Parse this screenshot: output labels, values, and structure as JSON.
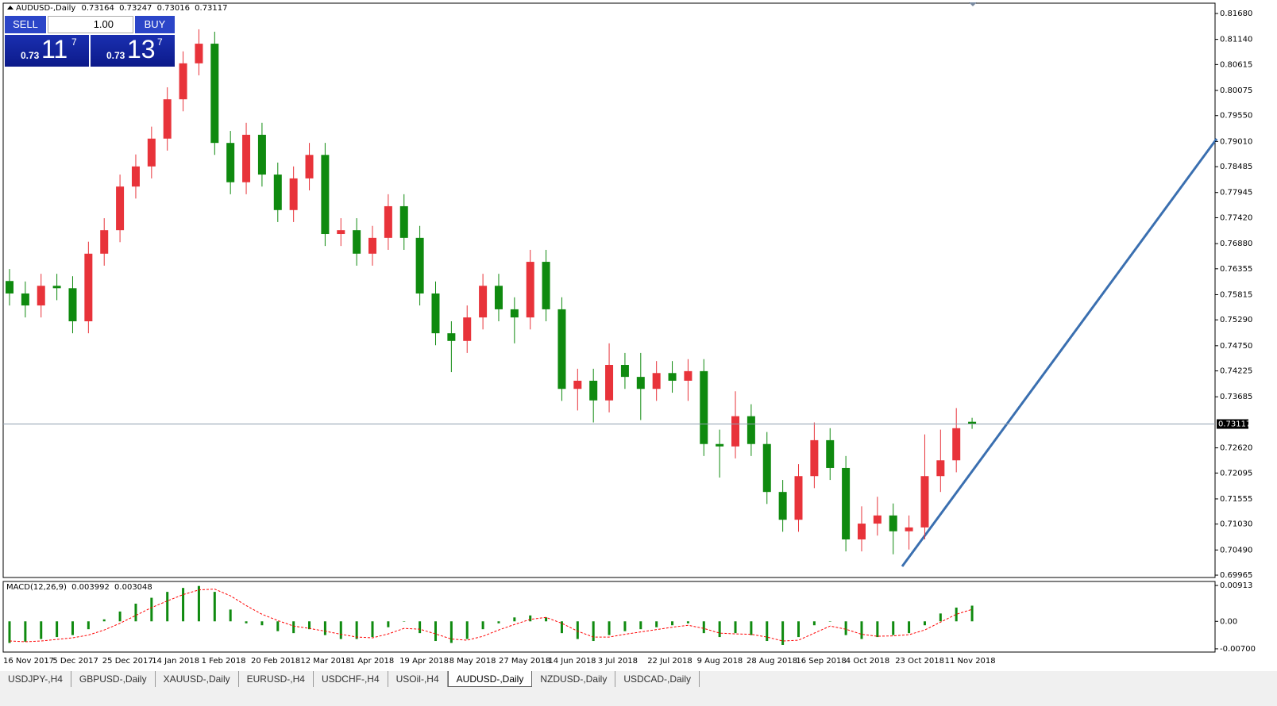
{
  "chart_data": [
    {
      "type": "candlestick",
      "title": "AUDUSD-,Daily",
      "open": [
        0.761,
        0.7584,
        0.7559,
        0.76,
        0.7595,
        0.7526,
        0.7667,
        0.7716,
        0.7807,
        0.7849,
        0.7907,
        0.7989,
        0.8064,
        0.8105,
        0.7898,
        0.7816,
        0.7915,
        0.7832,
        0.7758,
        0.7824,
        0.7873,
        0.7708,
        0.7716,
        0.7667,
        0.77,
        0.7766,
        0.77,
        0.7584,
        0.7501,
        0.7485,
        0.7534,
        0.76,
        0.7551,
        0.7534,
        0.765,
        0.7551,
        0.7385,
        0.7402,
        0.7361,
        0.7435,
        0.741,
        0.7385,
        0.7418,
        0.7402,
        0.7422,
        0.727,
        0.7265,
        0.7328,
        0.727,
        0.717,
        0.7112,
        0.7203,
        0.7278,
        0.722,
        0.7071,
        0.7104,
        0.7121,
        0.7088,
        0.7096,
        0.7203,
        0.7236,
        0.73164
      ],
      "high": [
        0.7635,
        0.7609,
        0.7625,
        0.7625,
        0.762,
        0.7692,
        0.7741,
        0.7832,
        0.7874,
        0.7932,
        0.8014,
        0.8089,
        0.8135,
        0.813,
        0.7923,
        0.794,
        0.794,
        0.7857,
        0.7849,
        0.7898,
        0.7898,
        0.7741,
        0.7741,
        0.7725,
        0.7791,
        0.7791,
        0.7725,
        0.7609,
        0.7526,
        0.7559,
        0.7625,
        0.7625,
        0.7576,
        0.7675,
        0.7675,
        0.7576,
        0.7427,
        0.7427,
        0.748,
        0.746,
        0.746,
        0.7443,
        0.7443,
        0.7447,
        0.7447,
        0.73,
        0.738,
        0.7353,
        0.7295,
        0.7195,
        0.7228,
        0.7315,
        0.7303,
        0.7245,
        0.714,
        0.716,
        0.7146,
        0.7121,
        0.729,
        0.73,
        0.7345,
        0.73247
      ],
      "low": [
        0.7559,
        0.7534,
        0.7534,
        0.757,
        0.7501,
        0.7501,
        0.7642,
        0.7691,
        0.7782,
        0.7824,
        0.7882,
        0.7964,
        0.8039,
        0.7873,
        0.7791,
        0.7791,
        0.7807,
        0.7733,
        0.7733,
        0.7799,
        0.7683,
        0.7683,
        0.7642,
        0.7642,
        0.7675,
        0.7675,
        0.7559,
        0.7476,
        0.742,
        0.746,
        0.7509,
        0.7526,
        0.748,
        0.7509,
        0.7526,
        0.736,
        0.734,
        0.7315,
        0.7336,
        0.7385,
        0.732,
        0.736,
        0.7377,
        0.736,
        0.7245,
        0.72,
        0.724,
        0.7245,
        0.7145,
        0.7087,
        0.7087,
        0.7178,
        0.7195,
        0.7046,
        0.7046,
        0.7079,
        0.704,
        0.705,
        0.7071,
        0.717,
        0.7211,
        0.73016
      ],
      "close": [
        0.7584,
        0.7559,
        0.76,
        0.7595,
        0.7526,
        0.7667,
        0.7716,
        0.7807,
        0.7849,
        0.7907,
        0.7989,
        0.8064,
        0.8105,
        0.7898,
        0.7816,
        0.7915,
        0.7832,
        0.7758,
        0.7824,
        0.7873,
        0.7708,
        0.7716,
        0.7667,
        0.77,
        0.7766,
        0.77,
        0.7584,
        0.7501,
        0.7485,
        0.7534,
        0.76,
        0.7551,
        0.7534,
        0.765,
        0.7551,
        0.7385,
        0.7402,
        0.7361,
        0.7435,
        0.741,
        0.7385,
        0.7418,
        0.7402,
        0.7422,
        0.727,
        0.7265,
        0.7328,
        0.727,
        0.717,
        0.7112,
        0.7203,
        0.7278,
        0.722,
        0.7071,
        0.7104,
        0.7121,
        0.7088,
        0.7096,
        0.7203,
        0.7236,
        0.7303,
        0.73117
      ],
      "up_color": "#e8333a",
      "down_color": "#0f8a0f",
      "ylim": [
        0.69916,
        0.81895
      ],
      "yticks": [
        {
          "value": 0.8168,
          "label": "0.81680"
        },
        {
          "value": 0.8114,
          "label": "0.81140"
        },
        0.80615,
        0.80075,
        {
          "value": 0.7955,
          "label": "0.79550"
        },
        {
          "value": 0.7901,
          "label": "0.79010"
        },
        0.78485,
        0.77945,
        {
          "value": 0.7742,
          "label": "0.77420"
        },
        {
          "value": 0.7688,
          "label": "0.76880"
        },
        0.76355,
        0.75815,
        {
          "value": 0.7529,
          "label": "0.75290"
        },
        {
          "value": 0.7475,
          "label": "0.74750"
        },
        0.74225,
        0.73685,
        {
          "value": 0.7262,
          "label": "0.72620"
        },
        0.72095,
        0.71555,
        {
          "value": 0.7103,
          "label": "0.71030"
        },
        {
          "value": 0.7049,
          "label": "0.70490"
        },
        0.69965
      ],
      "x_axis_labels": [
        "16 Nov 2017",
        "5 Dec 2017",
        "25 Dec 2017",
        "14 Jan 2018",
        "1 Feb 2018",
        "20 Feb 2018",
        "12 Mar 2018",
        "1 Apr 2018",
        "19 Apr 2018",
        "8 May 2018",
        "27 May 2018",
        "14 Jun 2018",
        "3 Jul 2018",
        "22 Jul 2018",
        "9 Aug 2018",
        "28 Aug 2018",
        "16 Sep 2018",
        "4 Oct 2018",
        "23 Oct 2018",
        "11 Nov 2018"
      ]
    },
    {
      "type": "macd",
      "title": "MACD(12,26,9)",
      "histogram": [
        -0.0055,
        -0.0052,
        -0.0045,
        -0.004,
        -0.0035,
        -0.002,
        0.0005,
        0.0025,
        0.0045,
        0.006,
        0.0075,
        0.0085,
        0.009,
        0.0075,
        0.003,
        -0.0005,
        -0.001,
        -0.0025,
        -0.003,
        -0.002,
        -0.0035,
        -0.0045,
        -0.0045,
        -0.004,
        -0.0015,
        0.0,
        -0.003,
        -0.005,
        -0.0055,
        -0.0045,
        -0.002,
        -0.0005,
        0.001,
        0.0015,
        0.001,
        -0.003,
        -0.0045,
        -0.005,
        -0.0035,
        -0.0025,
        -0.002,
        -0.0015,
        -0.001,
        -0.0005,
        -0.003,
        -0.004,
        -0.003,
        -0.0035,
        -0.005,
        -0.006,
        -0.004,
        -0.001,
        0.0,
        -0.0035,
        -0.0045,
        -0.004,
        -0.0035,
        -0.003,
        -0.001,
        0.002,
        0.0035,
        0.003992
      ],
      "signal": [
        -0.005,
        -0.0052,
        -0.005,
        -0.0046,
        -0.0042,
        -0.0035,
        -0.0022,
        -0.0005,
        0.0015,
        0.0035,
        0.0052,
        0.0068,
        0.008,
        0.0082,
        0.0065,
        0.004,
        0.0018,
        0.0002,
        -0.0012,
        -0.0018,
        -0.0025,
        -0.0033,
        -0.004,
        -0.0042,
        -0.0032,
        -0.0018,
        -0.002,
        -0.0032,
        -0.0045,
        -0.0048,
        -0.0038,
        -0.0022,
        -0.0008,
        0.0005,
        0.001,
        -0.0005,
        -0.0025,
        -0.004,
        -0.004,
        -0.0033,
        -0.0027,
        -0.0021,
        -0.0015,
        -0.001,
        -0.0018,
        -0.003,
        -0.0032,
        -0.0033,
        -0.004,
        -0.005,
        -0.0048,
        -0.003,
        -0.0012,
        -0.002,
        -0.0033,
        -0.0038,
        -0.0037,
        -0.0034,
        -0.0022,
        -0.0002,
        0.0018,
        0.003048
      ],
      "histogram_color": "#0f8a0f",
      "signal_color": "#ff0000",
      "ylim": [
        -0.00782,
        0.01015
      ],
      "yticks": [
        0.00913,
        {
          "value": 0,
          "label": "0.00"
        },
        {
          "value": -0.007,
          "label": "-0.00700"
        }
      ]
    }
  ],
  "trade_panel": {
    "sell": "SELL",
    "lot": "1.00",
    "buy": "BUY",
    "bid": {
      "big": "0.73",
      "main": "11",
      "pip": "7"
    },
    "ask": {
      "big": "0.73",
      "main": "13",
      "pip": "7"
    }
  },
  "tabs": [
    {
      "label": "USDJPY-,H4",
      "active": false
    },
    {
      "label": "GBPUSD-,Daily",
      "active": false
    },
    {
      "label": "XAUUSD-,Daily",
      "active": false
    },
    {
      "label": "EURUSD-,H4",
      "active": false
    },
    {
      "label": "USDCHF-,H4",
      "active": false
    },
    {
      "label": "USOil-,H4",
      "active": false
    },
    {
      "label": "AUDUSD-,Daily",
      "active": true
    },
    {
      "label": "NZDUSD-,Daily",
      "active": false
    },
    {
      "label": "USDCAD-,Daily",
      "active": false
    }
  ]
}
